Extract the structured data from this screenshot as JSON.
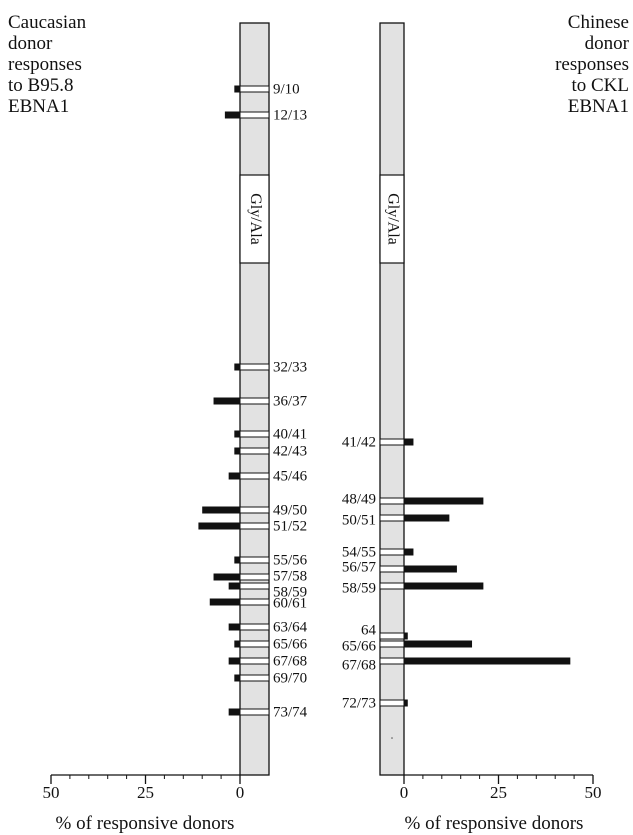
{
  "chart_data": [
    {
      "type": "bar",
      "orientation": "horizontal",
      "direction": "leftward",
      "title_lines": [
        "Caucasian",
        "donor",
        "responses",
        "to B95.8",
        "EBNA1"
      ],
      "xlabel": "% of responsive donors",
      "xlim": [
        0,
        50
      ],
      "xticks": [
        "50",
        "25",
        "0"
      ],
      "domain_label": "Gly/Ala",
      "categories": [
        "9/10",
        "12/13",
        "32/33",
        "36/37",
        "40/41",
        "42/43",
        "45/46",
        "49/50",
        "51/52",
        "55/56",
        "57/58",
        "58/59",
        "60/61",
        "63/64",
        "65/66",
        "67/68",
        "69/70",
        "73/74"
      ],
      "values": [
        1.5,
        4,
        1.5,
        7,
        1.5,
        1.5,
        3,
        10,
        11,
        1.5,
        7,
        3,
        8,
        3,
        1.5,
        3,
        1.5,
        3
      ]
    },
    {
      "type": "bar",
      "orientation": "horizontal",
      "direction": "rightward",
      "title_lines": [
        "Chinese",
        "donor",
        "responses",
        "to CKL",
        "EBNA1"
      ],
      "xlabel": "% of responsive donors",
      "xlim": [
        0,
        50
      ],
      "xticks": [
        "0",
        "25",
        "50"
      ],
      "domain_label": "Gly/Ala",
      "categories": [
        "41/42",
        "48/49",
        "50/51",
        "54/55",
        "56/57",
        "58/59",
        "64",
        "65/66",
        "67/68",
        "72/73"
      ],
      "values": [
        2.5,
        21,
        12,
        2.5,
        14,
        21,
        1,
        18,
        44,
        1
      ]
    }
  ]
}
